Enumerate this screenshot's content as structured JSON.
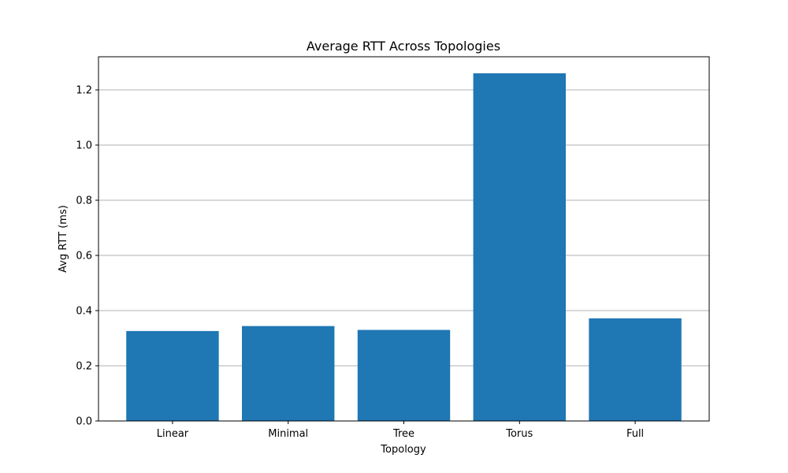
{
  "chart_data": {
    "type": "bar",
    "title": "Average RTT Across Topologies",
    "xlabel": "Topology",
    "ylabel": "Avg RTT (ms)",
    "categories": [
      "Linear",
      "Minimal",
      "Tree",
      "Torus",
      "Full"
    ],
    "values": [
      0.326,
      0.344,
      0.33,
      1.26,
      0.372
    ],
    "ylim": [
      0,
      1.32
    ],
    "yticks": [
      "0.0",
      "0.2",
      "0.4",
      "0.6",
      "0.8",
      "1.0",
      "1.2"
    ],
    "grid": "y",
    "legend": "none",
    "colors": {
      "bar": "#1f77b4",
      "grid": "#b0b0b0",
      "axis": "#000000"
    }
  }
}
